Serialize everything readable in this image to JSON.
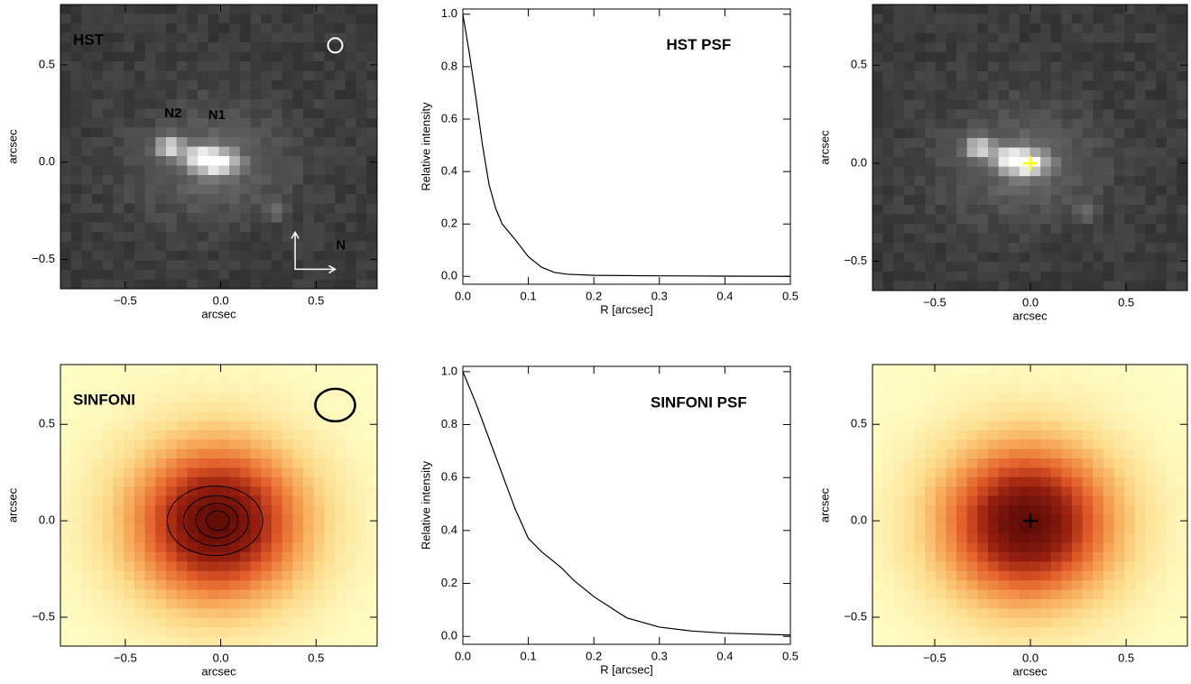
{
  "chart_data": [
    {
      "type": "image",
      "colormap": "gray",
      "title": "HST",
      "annotations": [
        "N2",
        "N1",
        "N"
      ],
      "xlabel": "arcsec",
      "ylabel": "arcsec",
      "xlim": [
        -0.84,
        0.82
      ],
      "ylim": [
        -0.65,
        0.81
      ],
      "xticks": [
        {
          "value": -0.5,
          "label": "−0.5"
        },
        {
          "value": 0,
          "label": "0.0"
        },
        0.5
      ],
      "yticks": [
        {
          "value": -0.5,
          "label": "−0.5"
        },
        {
          "value": 0,
          "label": "0.0"
        },
        0.5
      ]
    },
    {
      "type": "line",
      "title": "HST PSF",
      "xlabel": "R [arcsec]",
      "ylabel": "Relative intensity",
      "color": "#000000",
      "x": [
        0,
        0.01,
        0.02,
        0.03,
        0.04,
        0.05,
        0.06,
        0.08,
        0.1,
        0.12,
        0.14,
        0.16,
        0.2,
        0.3,
        0.4,
        0.5
      ],
      "values": [
        1.0,
        0.85,
        0.68,
        0.5,
        0.35,
        0.26,
        0.2,
        0.14,
        0.075,
        0.035,
        0.015,
        0.008,
        0.004,
        0.002,
        0.001,
        0.0
      ],
      "xlim": [
        0,
        0.5
      ],
      "ylim": [
        -0.03,
        1.02
      ],
      "xticks": [
        {
          "value": 0,
          "label": "0.0"
        },
        0.1,
        0.2,
        0.3,
        0.4,
        0.5
      ],
      "yticks": [
        {
          "value": 0,
          "label": "0.0"
        },
        0.2,
        0.4,
        0.6,
        0.8,
        {
          "value": 1,
          "label": "1.0"
        }
      ]
    },
    {
      "type": "image",
      "colormap": "gray",
      "marker": {
        "x": 0,
        "y": 0,
        "color": "#ffff00"
      },
      "xlabel": "arcsec",
      "ylabel": "arcsec",
      "xlim": [
        -0.825,
        0.82
      ],
      "ylim": [
        -0.65,
        0.81
      ],
      "xticks": [
        {
          "value": -0.5,
          "label": "−0.5"
        },
        {
          "value": 0,
          "label": "0.0"
        },
        0.5
      ],
      "yticks": [
        {
          "value": -0.5,
          "label": "−0.5"
        },
        {
          "value": 0,
          "label": "0.0"
        },
        0.5
      ]
    },
    {
      "type": "image",
      "colormap": "heat",
      "title": "SINFONI",
      "contours": true,
      "xlabel": "arcsec",
      "ylabel": "arcsec",
      "xlim": [
        -0.84,
        0.82
      ],
      "ylim": [
        -0.65,
        0.81
      ],
      "xticks": [
        {
          "value": -0.5,
          "label": "−0.5"
        },
        {
          "value": 0,
          "label": "0.0"
        },
        0.5
      ],
      "yticks": [
        {
          "value": -0.5,
          "label": "−0.5"
        },
        {
          "value": 0,
          "label": "0.0"
        },
        0.5
      ]
    },
    {
      "type": "line",
      "title": "SINFONI PSF",
      "xlabel": "R [arcsec]",
      "ylabel": "Relative intensity",
      "color": "#000000",
      "x": [
        0,
        0.02,
        0.05,
        0.08,
        0.1,
        0.12,
        0.15,
        0.17,
        0.2,
        0.25,
        0.3,
        0.35,
        0.4,
        0.5
      ],
      "values": [
        1.0,
        0.88,
        0.68,
        0.48,
        0.37,
        0.32,
        0.26,
        0.21,
        0.15,
        0.07,
        0.035,
        0.02,
        0.012,
        0.005
      ],
      "xlim": [
        0,
        0.5
      ],
      "ylim": [
        -0.03,
        1.02
      ],
      "xticks": [
        {
          "value": 0,
          "label": "0.0"
        },
        0.1,
        0.2,
        0.3,
        0.4,
        0.5
      ],
      "yticks": [
        {
          "value": 0,
          "label": "0.0"
        },
        0.2,
        0.4,
        0.6,
        0.8,
        {
          "value": 1,
          "label": "1.0"
        }
      ]
    },
    {
      "type": "image",
      "colormap": "heat",
      "marker": {
        "x": 0,
        "y": 0,
        "color": "#000000"
      },
      "xlabel": "arcsec",
      "ylabel": "arcsec",
      "xlim": [
        -0.825,
        0.82
      ],
      "ylim": [
        -0.65,
        0.81
      ],
      "xticks": [
        {
          "value": -0.5,
          "label": "−0.5"
        },
        {
          "value": 0,
          "label": "0.0"
        },
        0.5
      ],
      "yticks": [
        {
          "value": -0.5,
          "label": "−0.5"
        },
        {
          "value": 0,
          "label": "0.0"
        },
        0.5
      ]
    }
  ]
}
